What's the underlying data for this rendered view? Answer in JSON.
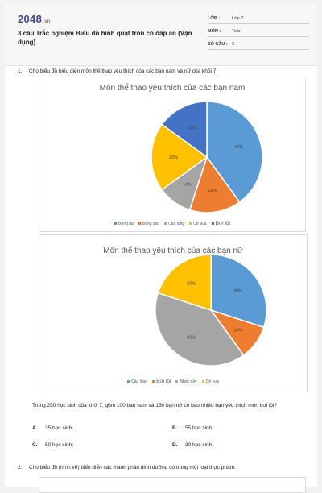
{
  "header": {
    "logo_main": "2048",
    "logo_suffix": ".vn",
    "title": "3 câu Trắc nghiệm Biểu đồ hình quạt tròn có đáp án (Vận dụng)",
    "meta": [
      {
        "key": "LỚP :",
        "value": "Lớp 7"
      },
      {
        "key": "MÔN :",
        "value": "Toán"
      },
      {
        "key": "SỐ CÂU :",
        "value": "3"
      }
    ]
  },
  "question1": {
    "number": "1.",
    "prompt": "Cho biểu đồ biểu diễn môn thể thao yêu thích của các bạn nam và nữ của khối 7:",
    "problem": "Trong 250 học sinh của khối 7, gồm 100 bạn nam và 150 bạn nữ có bao nhiêu bạn yêu thích môn bơi lội?",
    "options": [
      {
        "letter": "A.",
        "text": "35 học sinh;"
      },
      {
        "letter": "B.",
        "text": "55 học sinh;"
      },
      {
        "letter": "C.",
        "text": "50 học sinh;"
      },
      {
        "letter": "D.",
        "text": "30 học sinh."
      }
    ]
  },
  "question2": {
    "number": "2.",
    "prompt": "Cho biểu đồ (hình vẽ) biểu diễn các thành phần dinh dưỡng có trong một loại thực phẩm:"
  },
  "chart_data": [
    {
      "type": "pie",
      "title": "Môn thể thao yêu thích của các bạn nam",
      "start_angle_deg": 0,
      "slices": [
        {
          "name": "Bóng đá",
          "value": 40,
          "label": "40%",
          "color": "#5b9bd5"
        },
        {
          "name": "Bóng bàn",
          "value": 15,
          "label": "15%",
          "color": "#ed7d31"
        },
        {
          "name": "Cầu lông",
          "value": 10,
          "label": "10%",
          "color": "#a5a5a5"
        },
        {
          "name": "Cờ vua",
          "value": 20,
          "label": "20%",
          "color": "#ffc000"
        },
        {
          "name": "Bơi lội",
          "value": 15,
          "label": "15%",
          "color": "#4472c4"
        }
      ],
      "legend_position": "bottom"
    },
    {
      "type": "pie",
      "title": "Môn thể thao yêu thích của các bạn nữ",
      "start_angle_deg": 0,
      "slices": [
        {
          "name": "Cầu lông",
          "value": 30,
          "label": "30%",
          "color": "#5b9bd5"
        },
        {
          "name": "Bơi lội",
          "value": 10,
          "label": "10%",
          "color": "#ed7d31"
        },
        {
          "name": "Nhảy dây",
          "value": 40,
          "label": "40%",
          "color": "#a5a5a5"
        },
        {
          "name": "Cờ vua",
          "value": 20,
          "label": "20%",
          "color": "#ffc000"
        }
      ],
      "legend_position": "bottom"
    }
  ]
}
